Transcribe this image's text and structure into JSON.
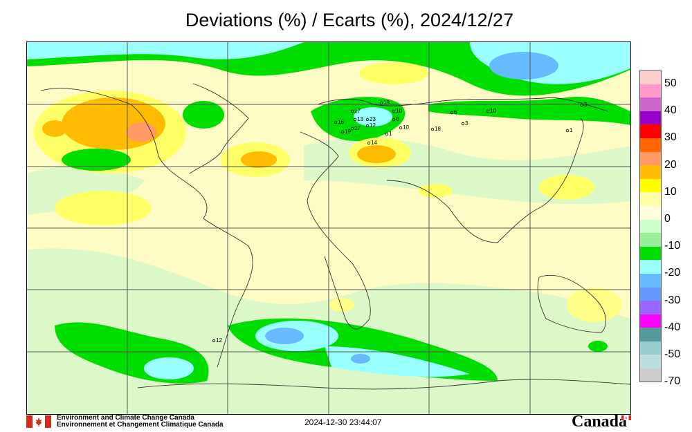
{
  "title": "Deviations (%) / Ecarts (%), 2024/12/27",
  "legend": {
    "labels": [
      "50",
      "40",
      "30",
      "20",
      "10",
      "0",
      "-10",
      "-20",
      "-30",
      "-40",
      "-50",
      "-70"
    ],
    "colors": [
      "#ffcccc",
      "#ff99cc",
      "#cc66cc",
      "#9900cc",
      "#ff0000",
      "#ff6600",
      "#ff9966",
      "#ffbb00",
      "#ffff00",
      "#ffffaa",
      "#ffffe0",
      "#ccffcc",
      "#99ee99",
      "#00dd00",
      "#99ffff",
      "#66bbff",
      "#6699ff",
      "#9966ff",
      "#ff00ff",
      "#559999",
      "#99cccc",
      "#bbdddd",
      "#cccccc"
    ]
  },
  "stations": [
    {
      "label": "18"
    },
    {
      "label": "10"
    },
    {
      "label": "17"
    },
    {
      "label": "13"
    },
    {
      "label": "16"
    },
    {
      "label": "23"
    },
    {
      "label": "8"
    },
    {
      "label": "17"
    },
    {
      "label": "12"
    },
    {
      "label": "10"
    },
    {
      "label": "19"
    },
    {
      "label": "1"
    },
    {
      "label": "14"
    },
    {
      "label": "18"
    },
    {
      "label": "6"
    },
    {
      "label": "3"
    },
    {
      "label": "10"
    },
    {
      "label": "3"
    },
    {
      "label": "1"
    },
    {
      "label": "12"
    }
  ],
  "footer": {
    "org_en": "Environment and Climate Change Canada",
    "org_fr": "Environnement et Changement Climatique Canada",
    "timestamp": "2024-12-30 23:44:07",
    "wordmark": "Canada"
  }
}
